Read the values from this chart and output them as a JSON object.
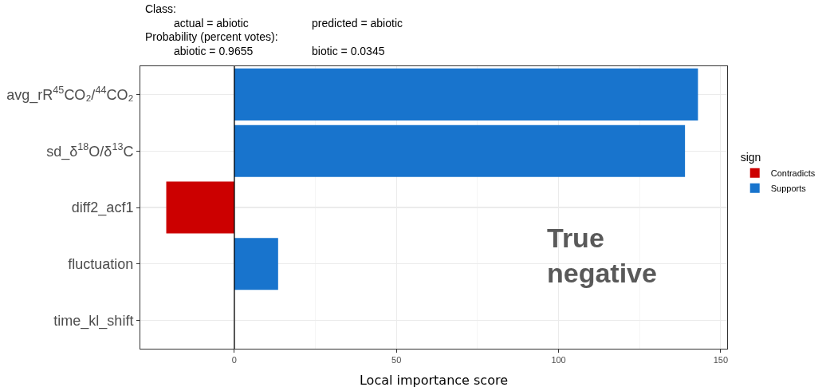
{
  "chart_data": {
    "type": "bar",
    "orientation": "horizontal",
    "xlabel": "Local importance score",
    "legend_title": "sign",
    "legend": "right",
    "categories": [
      "avg_rR$^{45}$CO₂/$^{44}$CO₂",
      "sd_δ$^{18}$O/δ$^{13}$C",
      "diff2_acf1",
      "fluctuation",
      "time_kl_shift"
    ],
    "series": [
      {
        "name": "Contradicts",
        "color": "#cc0000",
        "values": [
          null,
          null,
          -21,
          null,
          null
        ]
      },
      {
        "name": "Supports",
        "color": "#1874cd",
        "values": [
          143,
          139,
          null,
          13.5,
          null
        ]
      }
    ],
    "xlim": [
      -29,
      152
    ],
    "xticks": [
      0,
      50,
      100,
      150
    ],
    "grid": true,
    "ref_lines": [
      {
        "axis": "x",
        "value": 0,
        "color": "#000000"
      }
    ],
    "annotations": [
      "Class:",
      "actual = abiotic",
      "predicted = abiotic",
      "Probability (percent votes):",
      "abiotic = 0.9655",
      "biotic = 0.0345",
      "True negative"
    ]
  }
}
